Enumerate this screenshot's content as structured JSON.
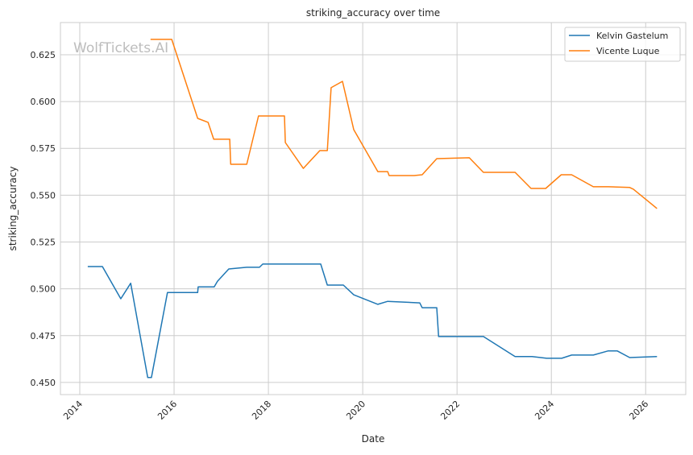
{
  "chart_data": {
    "type": "line",
    "title": "striking_accuracy over time",
    "xlabel": "Date",
    "ylabel": "striking_accuracy",
    "xlim": [
      2013.59,
      2026.85
    ],
    "ylim": [
      0.4435,
      0.6422
    ],
    "grid": true,
    "legend_position": "top-right",
    "watermark": "WolfTickets.AI",
    "x_ticks": [
      2014,
      2016,
      2018,
      2020,
      2022,
      2024,
      2026
    ],
    "x_tick_labels": [
      "2014",
      "2016",
      "2018",
      "2020",
      "2022",
      "2024",
      "2026"
    ],
    "y_ticks": [
      0.45,
      0.475,
      0.5,
      0.525,
      0.55,
      0.575,
      0.6,
      0.625
    ],
    "y_tick_labels": [
      "0.450",
      "0.475",
      "0.500",
      "0.525",
      "0.550",
      "0.575",
      "0.600",
      "0.625"
    ],
    "series": [
      {
        "name": "Kelvin Gastelum",
        "color": "#1f77b4",
        "x": [
          2014.17,
          2014.48,
          2014.87,
          2015.08,
          2015.44,
          2015.52,
          2015.86,
          2016.5,
          2016.51,
          2016.85,
          2016.92,
          2017.16,
          2017.54,
          2017.81,
          2017.88,
          2019.11,
          2019.25,
          2019.59,
          2019.81,
          2020.32,
          2020.53,
          2021.21,
          2021.26,
          2021.57,
          2021.61,
          2022.56,
          2023.23,
          2023.59,
          2023.9,
          2024.22,
          2024.43,
          2024.89,
          2025.2,
          2025.4,
          2025.66,
          2026.24
        ],
        "y": [
          0.5119,
          0.5119,
          0.4947,
          0.503,
          0.4526,
          0.4526,
          0.498,
          0.498,
          0.501,
          0.501,
          0.504,
          0.5106,
          0.5115,
          0.5115,
          0.5132,
          0.5132,
          0.502,
          0.502,
          0.4968,
          0.4917,
          0.4933,
          0.4925,
          0.4899,
          0.4899,
          0.4745,
          0.4745,
          0.4638,
          0.4638,
          0.4629,
          0.4629,
          0.4646,
          0.4646,
          0.4668,
          0.4668,
          0.4633,
          0.4638
        ]
      },
      {
        "name": "Vicente Luque",
        "color": "#ff7f0e",
        "x": [
          2015.5,
          2015.95,
          2016.5,
          2016.72,
          2016.84,
          2017.18,
          2017.2,
          2017.54,
          2017.79,
          2018.34,
          2018.36,
          2018.74,
          2019.09,
          2019.25,
          2019.33,
          2019.57,
          2019.81,
          2020.32,
          2020.53,
          2020.56,
          2021.09,
          2021.26,
          2021.57,
          2022.26,
          2022.56,
          2023.23,
          2023.57,
          2023.88,
          2024.21,
          2024.43,
          2024.89,
          2025.21,
          2025.66,
          2025.74,
          2026.24
        ],
        "y": [
          0.6332,
          0.6332,
          0.591,
          0.5889,
          0.5799,
          0.5799,
          0.5665,
          0.5665,
          0.5923,
          0.5923,
          0.5781,
          0.5643,
          0.5738,
          0.5738,
          0.6074,
          0.6108,
          0.585,
          0.5626,
          0.5626,
          0.5605,
          0.5605,
          0.5609,
          0.5695,
          0.57,
          0.5622,
          0.5622,
          0.5536,
          0.5536,
          0.5609,
          0.5609,
          0.5545,
          0.5545,
          0.5541,
          0.5532,
          0.5429
        ]
      }
    ]
  }
}
